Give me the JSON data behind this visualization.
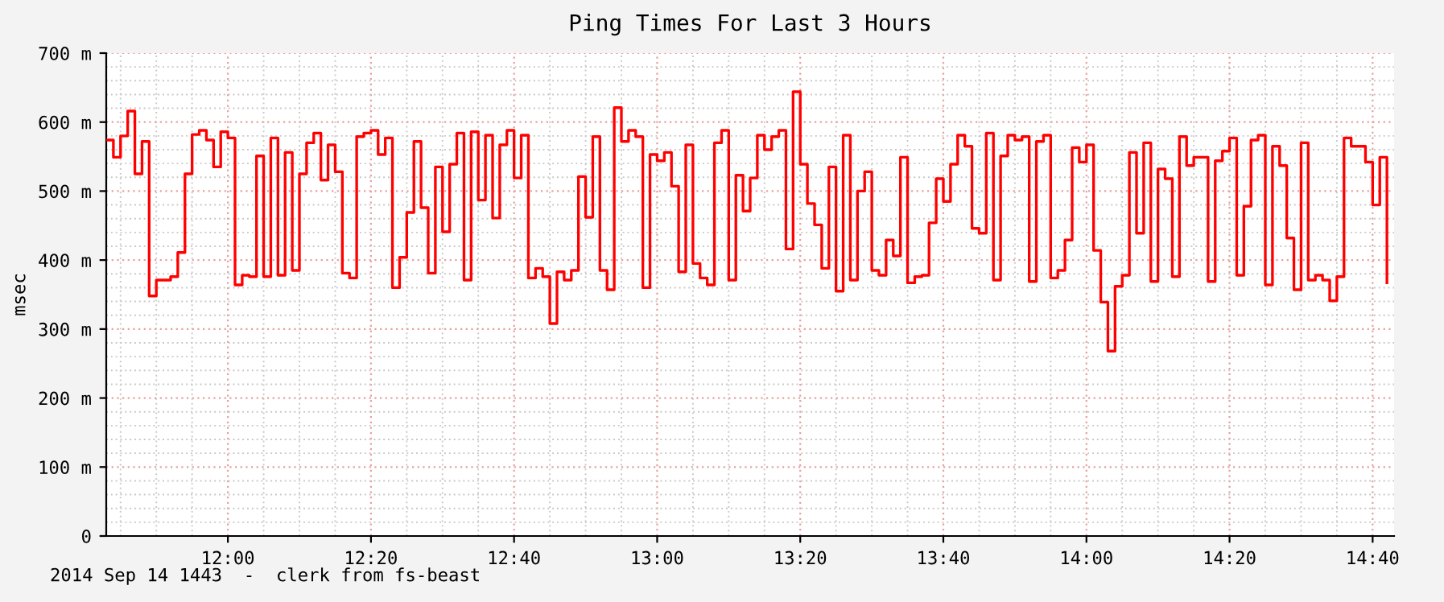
{
  "chart_data": {
    "type": "step",
    "title": "Ping Times For Last 3 Hours",
    "ylabel": "msec",
    "annotations": [
      "2014 Sep 14 1443  -  clerk from fs-beast"
    ],
    "xlim": [
      "2014-09-14T11:43",
      "2014-09-14T14:43"
    ],
    "xticks": [
      {
        "value": "2014-09-14T12:00",
        "label": "12:00"
      },
      {
        "value": "2014-09-14T12:20",
        "label": "12:20"
      },
      {
        "value": "2014-09-14T12:40",
        "label": "12:40"
      },
      {
        "value": "2014-09-14T13:00",
        "label": "13:00"
      },
      {
        "value": "2014-09-14T13:20",
        "label": "13:20"
      },
      {
        "value": "2014-09-14T13:40",
        "label": "13:40"
      },
      {
        "value": "2014-09-14T14:00",
        "label": "14:00"
      },
      {
        "value": "2014-09-14T14:20",
        "label": "14:20"
      },
      {
        "value": "2014-09-14T14:40",
        "label": "14:40"
      }
    ],
    "ylim": [
      0,
      700
    ],
    "yticks": [
      0,
      {
        "value": 100,
        "label": "100 m"
      },
      {
        "value": 200,
        "label": "200 m"
      },
      {
        "value": 300,
        "label": "300 m"
      },
      {
        "value": 400,
        "label": "400 m"
      },
      {
        "value": 500,
        "label": "500 m"
      },
      {
        "value": 600,
        "label": "600 m"
      },
      {
        "value": 700,
        "label": "700 m"
      }
    ],
    "grid": true,
    "legend": false,
    "line_style": "solid",
    "marker": "none",
    "x": [
      "2014-09-14T11:43",
      "2014-09-14T11:44",
      "2014-09-14T11:45",
      "2014-09-14T11:46",
      "2014-09-14T11:47",
      "2014-09-14T11:48",
      "2014-09-14T11:49",
      "2014-09-14T11:50",
      "2014-09-14T11:51",
      "2014-09-14T11:52",
      "2014-09-14T11:53",
      "2014-09-14T11:54",
      "2014-09-14T11:55",
      "2014-09-14T11:56",
      "2014-09-14T11:57",
      "2014-09-14T11:58",
      "2014-09-14T11:59",
      "2014-09-14T12:00",
      "2014-09-14T12:01",
      "2014-09-14T12:02",
      "2014-09-14T12:03",
      "2014-09-14T12:04",
      "2014-09-14T12:05",
      "2014-09-14T12:06",
      "2014-09-14T12:07",
      "2014-09-14T12:08",
      "2014-09-14T12:09",
      "2014-09-14T12:10",
      "2014-09-14T12:11",
      "2014-09-14T12:12",
      "2014-09-14T12:13",
      "2014-09-14T12:14",
      "2014-09-14T12:15",
      "2014-09-14T12:16",
      "2014-09-14T12:17",
      "2014-09-14T12:18",
      "2014-09-14T12:19",
      "2014-09-14T12:20",
      "2014-09-14T12:21",
      "2014-09-14T12:22",
      "2014-09-14T12:23",
      "2014-09-14T12:24",
      "2014-09-14T12:25",
      "2014-09-14T12:26",
      "2014-09-14T12:27",
      "2014-09-14T12:28",
      "2014-09-14T12:29",
      "2014-09-14T12:30",
      "2014-09-14T12:31",
      "2014-09-14T12:32",
      "2014-09-14T12:33",
      "2014-09-14T12:34",
      "2014-09-14T12:35",
      "2014-09-14T12:36",
      "2014-09-14T12:37",
      "2014-09-14T12:38",
      "2014-09-14T12:39",
      "2014-09-14T12:40",
      "2014-09-14T12:41",
      "2014-09-14T12:42",
      "2014-09-14T12:43",
      "2014-09-14T12:44",
      "2014-09-14T12:45",
      "2014-09-14T12:46",
      "2014-09-14T12:47",
      "2014-09-14T12:48",
      "2014-09-14T12:49",
      "2014-09-14T12:50",
      "2014-09-14T12:51",
      "2014-09-14T12:52",
      "2014-09-14T12:53",
      "2014-09-14T12:54",
      "2014-09-14T12:55",
      "2014-09-14T12:56",
      "2014-09-14T12:57",
      "2014-09-14T12:58",
      "2014-09-14T12:59",
      "2014-09-14T13:00",
      "2014-09-14T13:01",
      "2014-09-14T13:02",
      "2014-09-14T13:03",
      "2014-09-14T13:04",
      "2014-09-14T13:05",
      "2014-09-14T13:06",
      "2014-09-14T13:07",
      "2014-09-14T13:08",
      "2014-09-14T13:09",
      "2014-09-14T13:10",
      "2014-09-14T13:11",
      "2014-09-14T13:12",
      "2014-09-14T13:13",
      "2014-09-14T13:14",
      "2014-09-14T13:15",
      "2014-09-14T13:16",
      "2014-09-14T13:17",
      "2014-09-14T13:18",
      "2014-09-14T13:19",
      "2014-09-14T13:20",
      "2014-09-14T13:21",
      "2014-09-14T13:22",
      "2014-09-14T13:23",
      "2014-09-14T13:24",
      "2014-09-14T13:25",
      "2014-09-14T13:26",
      "2014-09-14T13:27",
      "2014-09-14T13:28",
      "2014-09-14T13:29",
      "2014-09-14T13:30",
      "2014-09-14T13:31",
      "2014-09-14T13:32",
      "2014-09-14T13:33",
      "2014-09-14T13:34",
      "2014-09-14T13:35",
      "2014-09-14T13:36",
      "2014-09-14T13:37",
      "2014-09-14T13:38",
      "2014-09-14T13:39",
      "2014-09-14T13:40",
      "2014-09-14T13:41",
      "2014-09-14T13:42",
      "2014-09-14T13:43",
      "2014-09-14T13:44",
      "2014-09-14T13:45",
      "2014-09-14T13:46",
      "2014-09-14T13:47",
      "2014-09-14T13:48",
      "2014-09-14T13:49",
      "2014-09-14T13:50",
      "2014-09-14T13:51",
      "2014-09-14T13:52",
      "2014-09-14T13:53",
      "2014-09-14T13:54",
      "2014-09-14T13:55",
      "2014-09-14T13:56",
      "2014-09-14T13:57",
      "2014-09-14T13:58",
      "2014-09-14T13:59",
      "2014-09-14T14:00",
      "2014-09-14T14:01",
      "2014-09-14T14:02",
      "2014-09-14T14:03",
      "2014-09-14T14:04",
      "2014-09-14T14:05",
      "2014-09-14T14:06",
      "2014-09-14T14:07",
      "2014-09-14T14:08",
      "2014-09-14T14:09",
      "2014-09-14T14:10",
      "2014-09-14T14:11",
      "2014-09-14T14:12",
      "2014-09-14T14:13",
      "2014-09-14T14:14",
      "2014-09-14T14:15",
      "2014-09-14T14:16",
      "2014-09-14T14:17",
      "2014-09-14T14:18",
      "2014-09-14T14:19",
      "2014-09-14T14:20",
      "2014-09-14T14:21",
      "2014-09-14T14:22",
      "2014-09-14T14:23",
      "2014-09-14T14:24",
      "2014-09-14T14:25",
      "2014-09-14T14:26",
      "2014-09-14T14:27",
      "2014-09-14T14:28",
      "2014-09-14T14:29",
      "2014-09-14T14:30",
      "2014-09-14T14:31",
      "2014-09-14T14:32",
      "2014-09-14T14:33",
      "2014-09-14T14:34",
      "2014-09-14T14:35",
      "2014-09-14T14:36",
      "2014-09-14T14:37",
      "2014-09-14T14:38",
      "2014-09-14T14:39",
      "2014-09-14T14:40",
      "2014-09-14T14:41",
      "2014-09-14T14:42"
    ],
    "series": [
      {
        "color": "#ff0000",
        "values": [
          574,
          549,
          580,
          616,
          525,
          572,
          348,
          371,
          371,
          376,
          411,
          525,
          582,
          588,
          574,
          535,
          586,
          577,
          364,
          378,
          376,
          551,
          376,
          577,
          378,
          556,
          385,
          525,
          570,
          584,
          516,
          567,
          528,
          381,
          374,
          579,
          584,
          588,
          553,
          577,
          360,
          404,
          469,
          572,
          476,
          381,
          535,
          441,
          539,
          584,
          371,
          586,
          487,
          581,
          461,
          567,
          588,
          519,
          581,
          374,
          388,
          376,
          308,
          383,
          371,
          385,
          521,
          462,
          579,
          385,
          357,
          621,
          572,
          588,
          579,
          360,
          553,
          544,
          556,
          507,
          383,
          567,
          395,
          374,
          364,
          570,
          588,
          371,
          523,
          471,
          519,
          581,
          560,
          579,
          588,
          416,
          644,
          539,
          482,
          451,
          388,
          535,
          355,
          581,
          371,
          500,
          528,
          385,
          378,
          429,
          406,
          549,
          367,
          376,
          378,
          454,
          518,
          485,
          539,
          581,
          565,
          446,
          439,
          584,
          371,
          551,
          581,
          574,
          579,
          369,
          572,
          581,
          374,
          385,
          429,
          563,
          542,
          567,
          414,
          339,
          268,
          362,
          378,
          556,
          439,
          570,
          369,
          532,
          518,
          376,
          579,
          537,
          549,
          549,
          369,
          544,
          558,
          577,
          378,
          478,
          574,
          581,
          364,
          565,
          537,
          432,
          357,
          570,
          371,
          378,
          371,
          341,
          376,
          577,
          565,
          565,
          542,
          480,
          549,
          367
        ]
      }
    ]
  }
}
